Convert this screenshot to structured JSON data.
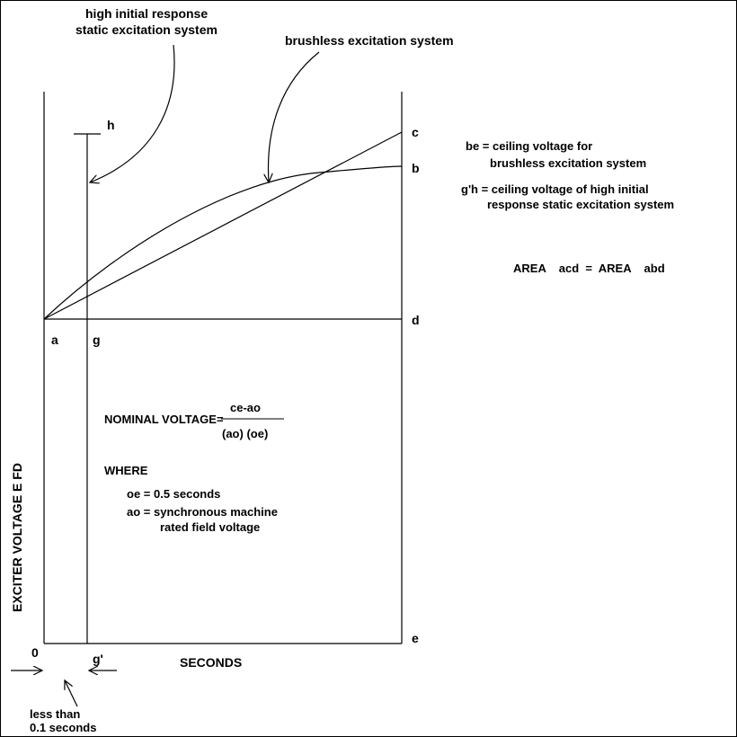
{
  "annotations": {
    "static_system_line1": "high initial response",
    "static_system_line2": "static excitation system",
    "brushless_system": "brushless excitation system"
  },
  "points": {
    "a": "a",
    "b": "b",
    "c": "c",
    "d": "d",
    "e": "e",
    "g": "g",
    "h": "h",
    "g_prime": "g'",
    "o": "0"
  },
  "axes": {
    "y_label": "EXCITER VOLTAGE  E FD",
    "x_label": "SECONDS"
  },
  "legend": {
    "be_line1": "be = ceiling voltage for",
    "be_line2": "brushless excitation system",
    "gh_line1": "g'h = ceiling voltage of high initial",
    "gh_line2": "response static excitation system",
    "area_eq": "AREA    acd  =  AREA    abd"
  },
  "formula": {
    "lhs": "NOMINAL VOLTAGE=",
    "numerator": "ce-ao",
    "denominator": "(ao) (oe)",
    "where": "WHERE",
    "oe_def": "oe = 0.5 seconds",
    "ao_def_line1": "ao = synchronous machine",
    "ao_def_line2": "rated field voltage"
  },
  "interval_note": {
    "line1": "less than",
    "line2": "0.1 seconds"
  }
}
